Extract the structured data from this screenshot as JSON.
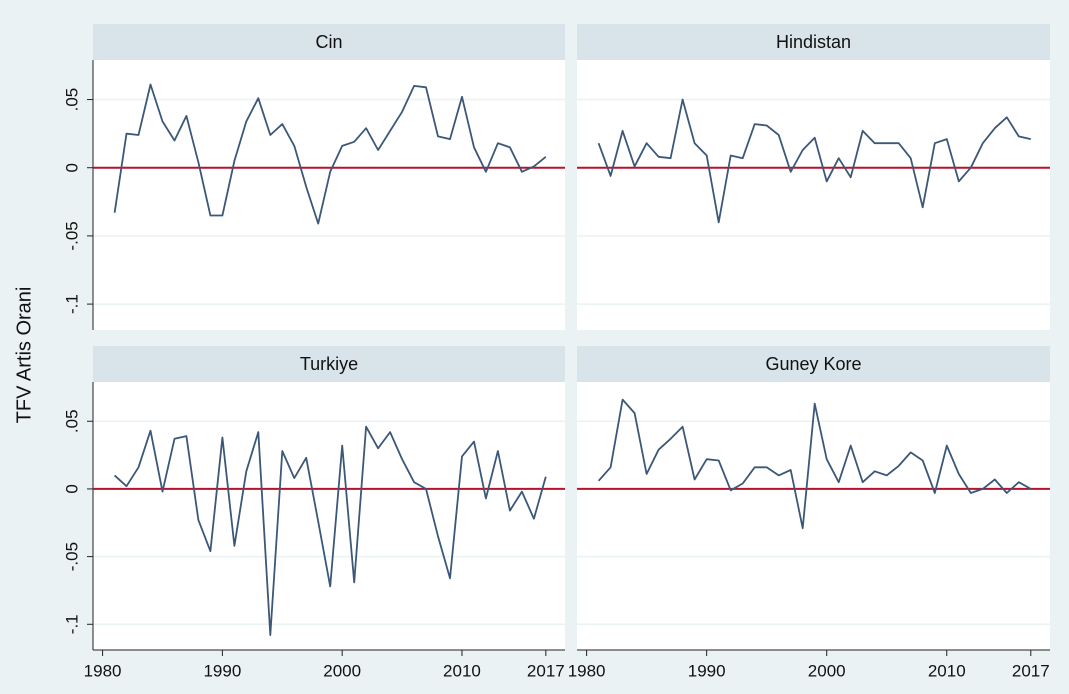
{
  "y_label": "TFV Artis Orani",
  "xlim": [
    1979.2,
    2018.6
  ],
  "xticks": [
    1980,
    1990,
    2000,
    2010,
    2017
  ],
  "ylim": [
    -0.119,
    0.079
  ],
  "yticks": [
    {
      "value": 0.05,
      "label": ".05"
    },
    0,
    {
      "value": -0.05,
      "label": "-.05"
    },
    {
      "value": -0.1,
      "label": "-.1"
    }
  ],
  "grid": true,
  "hline": 0,
  "hline_color": "#b5132c",
  "chart_data": [
    {
      "type": "line",
      "title": "Cin",
      "color": "#3b5878",
      "x": [
        1981,
        1982,
        1983,
        1984,
        1985,
        1986,
        1987,
        1988,
        1989,
        1990,
        1991,
        1992,
        1993,
        1994,
        1995,
        1996,
        1997,
        1998,
        1999,
        2000,
        2001,
        2002,
        2003,
        2004,
        2005,
        2006,
        2007,
        2008,
        2009,
        2010,
        2011,
        2012,
        2013,
        2014,
        2015,
        2016,
        2017
      ],
      "values": [
        -0.033,
        0.025,
        0.024,
        0.061,
        0.034,
        0.02,
        0.038,
        0.004,
        -0.035,
        -0.035,
        0.005,
        0.034,
        0.051,
        0.024,
        0.032,
        0.016,
        -0.014,
        -0.041,
        -0.003,
        0.016,
        0.019,
        0.029,
        0.013,
        0.027,
        0.041,
        0.06,
        0.059,
        0.023,
        0.021,
        0.052,
        0.015,
        -0.003,
        0.018,
        0.015,
        -0.003,
        0.001,
        0.008
      ]
    },
    {
      "type": "line",
      "title": "Hindistan",
      "color": "#3b5878",
      "x": [
        1981,
        1982,
        1983,
        1984,
        1985,
        1986,
        1987,
        1988,
        1989,
        1990,
        1991,
        1992,
        1993,
        1994,
        1995,
        1996,
        1997,
        1998,
        1999,
        2000,
        2001,
        2002,
        2003,
        2004,
        2005,
        2006,
        2007,
        2008,
        2009,
        2010,
        2011,
        2012,
        2013,
        2014,
        2015,
        2016,
        2017
      ],
      "values": [
        0.018,
        -0.006,
        0.027,
        0.001,
        0.018,
        0.008,
        0.007,
        0.05,
        0.018,
        0.009,
        -0.04,
        0.009,
        0.007,
        0.032,
        0.031,
        0.024,
        -0.003,
        0.013,
        0.022,
        -0.01,
        0.007,
        -0.007,
        0.027,
        0.018,
        0.018,
        0.018,
        0.007,
        -0.029,
        0.018,
        0.021,
        -0.01,
        0.0,
        0.018,
        0.029,
        0.037,
        0.023,
        0.021
      ]
    },
    {
      "type": "line",
      "title": "Turkiye",
      "color": "#3b5878",
      "x": [
        1981,
        1982,
        1983,
        1984,
        1985,
        1986,
        1987,
        1988,
        1989,
        1990,
        1991,
        1992,
        1993,
        1994,
        1995,
        1996,
        1997,
        1998,
        1999,
        2000,
        2001,
        2002,
        2003,
        2004,
        2005,
        2006,
        2007,
        2008,
        2009,
        2010,
        2011,
        2012,
        2013,
        2014,
        2015,
        2016,
        2017
      ],
      "values": [
        0.01,
        0.002,
        0.016,
        0.043,
        -0.002,
        0.037,
        0.039,
        -0.023,
        -0.046,
        0.038,
        -0.042,
        0.013,
        0.042,
        -0.108,
        0.028,
        0.008,
        0.023,
        -0.024,
        -0.072,
        0.032,
        -0.069,
        0.046,
        0.03,
        0.042,
        0.022,
        0.005,
        0.0,
        -0.035,
        -0.066,
        0.024,
        0.035,
        -0.007,
        0.028,
        -0.016,
        -0.002,
        -0.022,
        0.009
      ]
    },
    {
      "type": "line",
      "title": "Guney Kore",
      "color": "#3b5878",
      "x": [
        1981,
        1982,
        1983,
        1984,
        1985,
        1986,
        1987,
        1988,
        1989,
        1990,
        1991,
        1992,
        1993,
        1994,
        1995,
        1996,
        1997,
        1998,
        1999,
        2000,
        2001,
        2002,
        2003,
        2004,
        2005,
        2006,
        2007,
        2008,
        2009,
        2010,
        2011,
        2012,
        2013,
        2014,
        2015,
        2016,
        2017
      ],
      "values": [
        0.006,
        0.016,
        0.066,
        0.056,
        0.011,
        0.029,
        0.037,
        0.046,
        0.007,
        0.022,
        0.021,
        -0.001,
        0.004,
        0.016,
        0.016,
        0.01,
        0.014,
        -0.029,
        0.063,
        0.022,
        0.005,
        0.032,
        0.005,
        0.013,
        0.01,
        0.017,
        0.027,
        0.021,
        -0.003,
        0.032,
        0.011,
        -0.003,
        0.0,
        0.007,
        -0.003,
        0.005,
        0.0
      ]
    }
  ]
}
